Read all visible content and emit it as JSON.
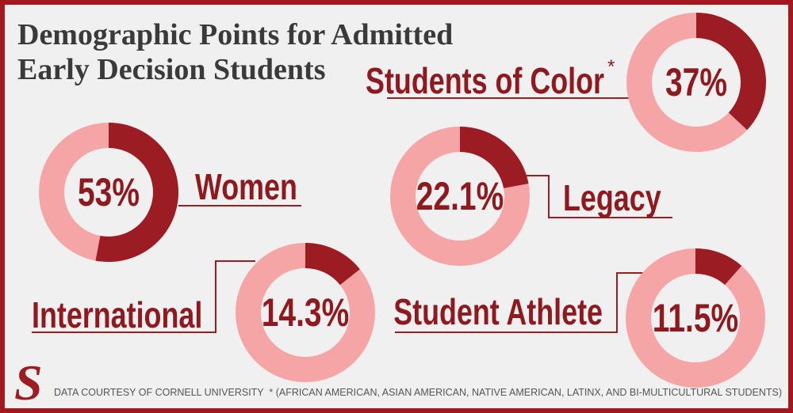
{
  "title_lines": [
    "Demographic Points for Admitted",
    "Early Decision Students"
  ],
  "chart_data": [
    {
      "type": "donut",
      "label": "Students of Color",
      "marker": "*",
      "values": [
        37
      ],
      "value_labels": [
        "37%"
      ],
      "color": "#9b1c23",
      "track_color": "#f5a5a5"
    },
    {
      "type": "donut",
      "label": "Women",
      "values": [
        53
      ],
      "value_labels": [
        "53%"
      ],
      "color": "#9b1c23",
      "track_color": "#f5a5a5"
    },
    {
      "type": "donut",
      "label": "Legacy",
      "values": [
        22.1
      ],
      "value_labels": [
        "22.1%"
      ],
      "color": "#9b1c23",
      "track_color": "#f5a5a5"
    },
    {
      "type": "donut",
      "label": "International",
      "values": [
        14.3
      ],
      "value_labels": [
        "14.3%"
      ],
      "color": "#9b1c23",
      "track_color": "#f5a5a5"
    },
    {
      "type": "donut",
      "label": "Student Athlete",
      "values": [
        11.5
      ],
      "value_labels": [
        "11.5%"
      ],
      "color": "#9b1c23",
      "track_color": "#f5a5a5"
    }
  ],
  "logo": "S",
  "credit": "DATA COURTESY OF CORNELL UNIVERSITY",
  "footnote": "* (AFRICAN AMERICAN, ASIAN AMERICAN, NATIVE AMERICAN, LATINX, AND BI-MULTICULTURAL STUDENTS)"
}
